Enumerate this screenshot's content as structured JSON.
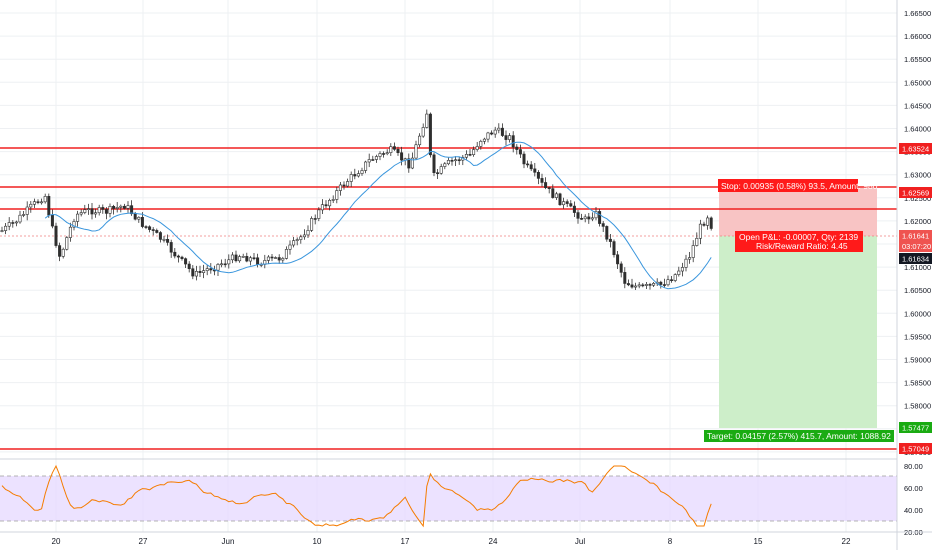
{
  "colors": {
    "up": "#26a69a",
    "down": "#ef5350",
    "candle": "#2e2e2e",
    "hline": "#f02020",
    "ma": "#3a96dd",
    "rsi": "#f57c00",
    "rsi_band": "#e7dbff",
    "grid": "#eef0f3",
    "stop_zone": "#f8c4c4",
    "target_zone": "#cdeec9",
    "stop_label_bg": "#ff1a1a",
    "target_label_bg": "#1aab12"
  },
  "price_axis": {
    "labels": [
      "1.66500",
      "1.66000",
      "1.65500",
      "1.65000",
      "1.64500",
      "1.64000",
      "1.63500",
      "1.63000",
      "1.62500",
      "1.62000",
      "1.61500",
      "1.61000",
      "1.60500",
      "1.60000",
      "1.59500",
      "1.59000",
      "1.58500",
      "1.58000",
      "1.57500",
      "1.57000"
    ],
    "tags": {
      "level_1": "1.63524",
      "level_2": "1.62569",
      "last_price": "1.61641",
      "countdown": "03:07:20",
      "entry": "1.61634",
      "target": "1.57477",
      "level_4": "1.57049"
    }
  },
  "rsi_axis": {
    "labels": [
      "80.00",
      "60.00",
      "40.00",
      "20.00"
    ]
  },
  "time_axis": {
    "labels": [
      "20",
      "27",
      "Jun",
      "10",
      "17",
      "24",
      "Jul",
      "8",
      "15",
      "22"
    ]
  },
  "position": {
    "stop_label": "Stop: 0.00935 (0.58%) 93.5, Amount: 980",
    "pnl_label": "Open P&L: -0.00007, Qty: 2139",
    "ratio_label": "Risk/Reward Ratio: 4.45",
    "target_label": "Target: 0.04157 (2.57%) 415.7, Amount: 1088.92"
  }
}
